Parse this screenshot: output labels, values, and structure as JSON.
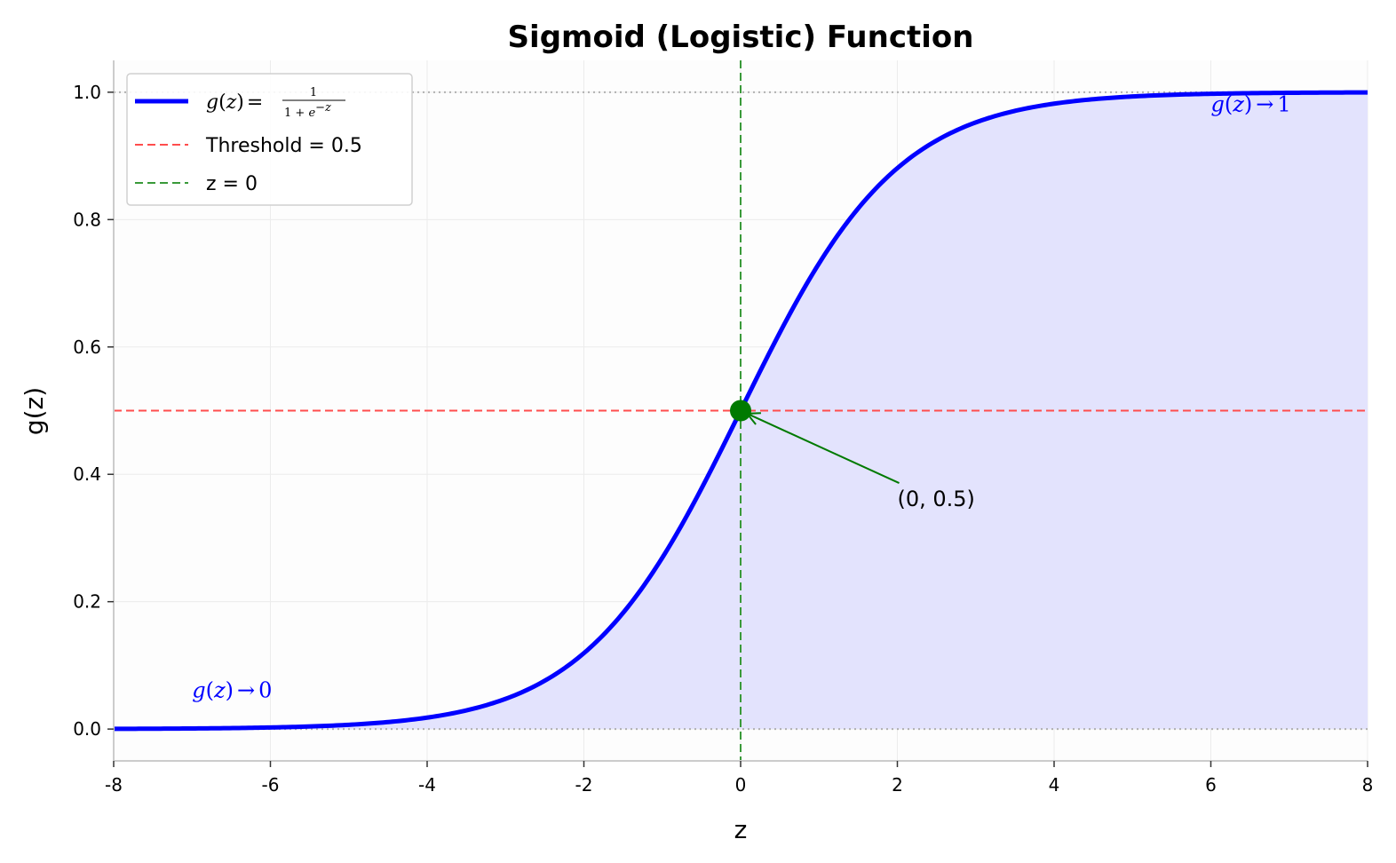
{
  "chart_data": {
    "type": "line",
    "title": "Sigmoid (Logistic) Function",
    "xlabel": "z",
    "ylabel": "g(z)",
    "xlim": [
      -8,
      8
    ],
    "ylim": [
      -0.05,
      1.05
    ],
    "x_ticks": [
      -8,
      -6,
      -4,
      -2,
      0,
      2,
      4,
      6,
      8
    ],
    "y_ticks": [
      0.0,
      0.2,
      0.4,
      0.6,
      0.8,
      1.0
    ],
    "x_tick_labels": [
      "-8",
      "-6",
      "-4",
      "-2",
      "0",
      "2",
      "4",
      "6",
      "8"
    ],
    "y_tick_labels": [
      "0.0",
      "0.2",
      "0.4",
      "0.6",
      "0.8",
      "1.0"
    ],
    "grid": true,
    "legend_placement": "upper-left",
    "series": [
      {
        "name": "g(z) = 1 / (1 + e^-z)",
        "function": "sigmoid",
        "color": "#0000ff",
        "fill_to_zero": true,
        "fill_color": "#e3e3fd",
        "x": [
          -8,
          -7,
          -6,
          -5,
          -4,
          -3,
          -2,
          -1,
          0,
          1,
          2,
          3,
          4,
          5,
          6,
          7,
          8
        ],
        "y": [
          0.0003,
          0.0009,
          0.0025,
          0.0067,
          0.018,
          0.0474,
          0.1192,
          0.2689,
          0.5,
          0.7311,
          0.8808,
          0.9526,
          0.982,
          0.9933,
          0.9975,
          0.9991,
          0.9997
        ]
      }
    ],
    "reference_lines": {
      "threshold": {
        "name": "Threshold = 0.5",
        "orientation": "horizontal",
        "value": 0.5,
        "color": "#ff4d4d",
        "style": "dashed"
      },
      "z_zero": {
        "name": "z = 0",
        "orientation": "vertical",
        "value": 0,
        "color": "#3a9a3a",
        "style": "dashed"
      },
      "upper_asymptote": {
        "orientation": "horizontal",
        "value": 1.0,
        "color": "#b0b0b0",
        "style": "dotted"
      },
      "lower_asymptote": {
        "orientation": "horizontal",
        "value": 0.0,
        "color": "#b0b0b0",
        "style": "dotted"
      }
    },
    "highlight_point": {
      "x": 0,
      "y": 0.5,
      "color": "#007a00",
      "label": "(0, 0.5)",
      "label_at": {
        "x": 2,
        "y": 0.35
      }
    },
    "annotations": [
      {
        "id": "limit_zero",
        "text": "g(z) → 0",
        "func": "g",
        "var": "z",
        "arrow": "→",
        "value": "0",
        "x": -7,
        "y": 0.05,
        "color": "#0000ff"
      },
      {
        "id": "limit_one",
        "text": "g(z) → 1",
        "func": "g",
        "var": "z",
        "arrow": "→",
        "value": "1",
        "x": 6,
        "y": 0.97,
        "color": "#0000ff"
      }
    ],
    "legend": {
      "entries": [
        {
          "id": "sigmoid",
          "func": "g",
          "var": "z",
          "eq": "=",
          "numerator": "1",
          "denominator_prefix": "1 + ",
          "base": "e",
          "exponent": "−z"
        },
        {
          "id": "threshold",
          "text": "Threshold = 0.5"
        },
        {
          "id": "z_zero",
          "text": "z = 0"
        }
      ]
    }
  }
}
